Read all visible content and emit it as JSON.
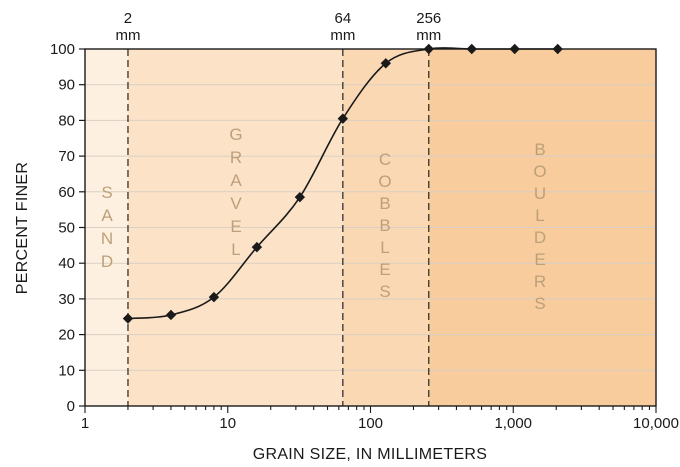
{
  "chart_data": {
    "type": "line",
    "x_scale": "log",
    "xlim": [
      1,
      10000
    ],
    "ylim": [
      0,
      100
    ],
    "xlabel": "GRAIN SIZE, IN MILLIMETERS",
    "ylabel": "PERCENT FINER",
    "x_ticks": [
      {
        "value": 1,
        "label": "1"
      },
      {
        "value": 10,
        "label": "10"
      },
      {
        "value": 100,
        "label": "100"
      },
      {
        "value": 1000,
        "label": "1,000"
      },
      {
        "value": 10000,
        "label": "10,000"
      }
    ],
    "y_ticks": [
      0,
      10,
      20,
      30,
      40,
      50,
      60,
      70,
      80,
      90,
      100
    ],
    "grid": "horizontal",
    "series": [
      {
        "x": [
          2,
          4,
          8,
          16,
          32,
          64,
          128,
          256,
          512,
          1024,
          2048
        ],
        "values": [
          24.5,
          25.5,
          30.5,
          44.5,
          58.5,
          80.5,
          96,
          100,
          100,
          100,
          100
        ]
      }
    ],
    "boundaries": [
      {
        "value": 2,
        "label": [
          "2",
          "mm"
        ]
      },
      {
        "value": 64,
        "label": [
          "64",
          "mm"
        ]
      },
      {
        "value": 256,
        "label": [
          "256",
          "mm"
        ]
      }
    ],
    "zones": [
      {
        "name": "sand",
        "from": 1,
        "to": 2,
        "letters": [
          "S",
          "A",
          "N",
          "D"
        ],
        "color": "#fdf0e0"
      },
      {
        "name": "gravel",
        "from": 2,
        "to": 64,
        "letters": [
          "G",
          "R",
          "A",
          "V",
          "E",
          "L"
        ],
        "color": "#fce3c8"
      },
      {
        "name": "cobbles",
        "from": 64,
        "to": 256,
        "letters": [
          "C",
          "O",
          "B",
          "B",
          "L",
          "E",
          "S"
        ],
        "color": "#fad8b3"
      },
      {
        "name": "boulders",
        "from": 256,
        "to": 10000,
        "letters": [
          "B",
          "O",
          "U",
          "L",
          "D",
          "E",
          "R",
          "S"
        ],
        "color": "#f8cc9c"
      }
    ],
    "colors": {
      "line": "#1a1a1a",
      "marker": "#1a1a1a",
      "grid": "#d9cfc4",
      "zone_text": "#bda079"
    }
  }
}
